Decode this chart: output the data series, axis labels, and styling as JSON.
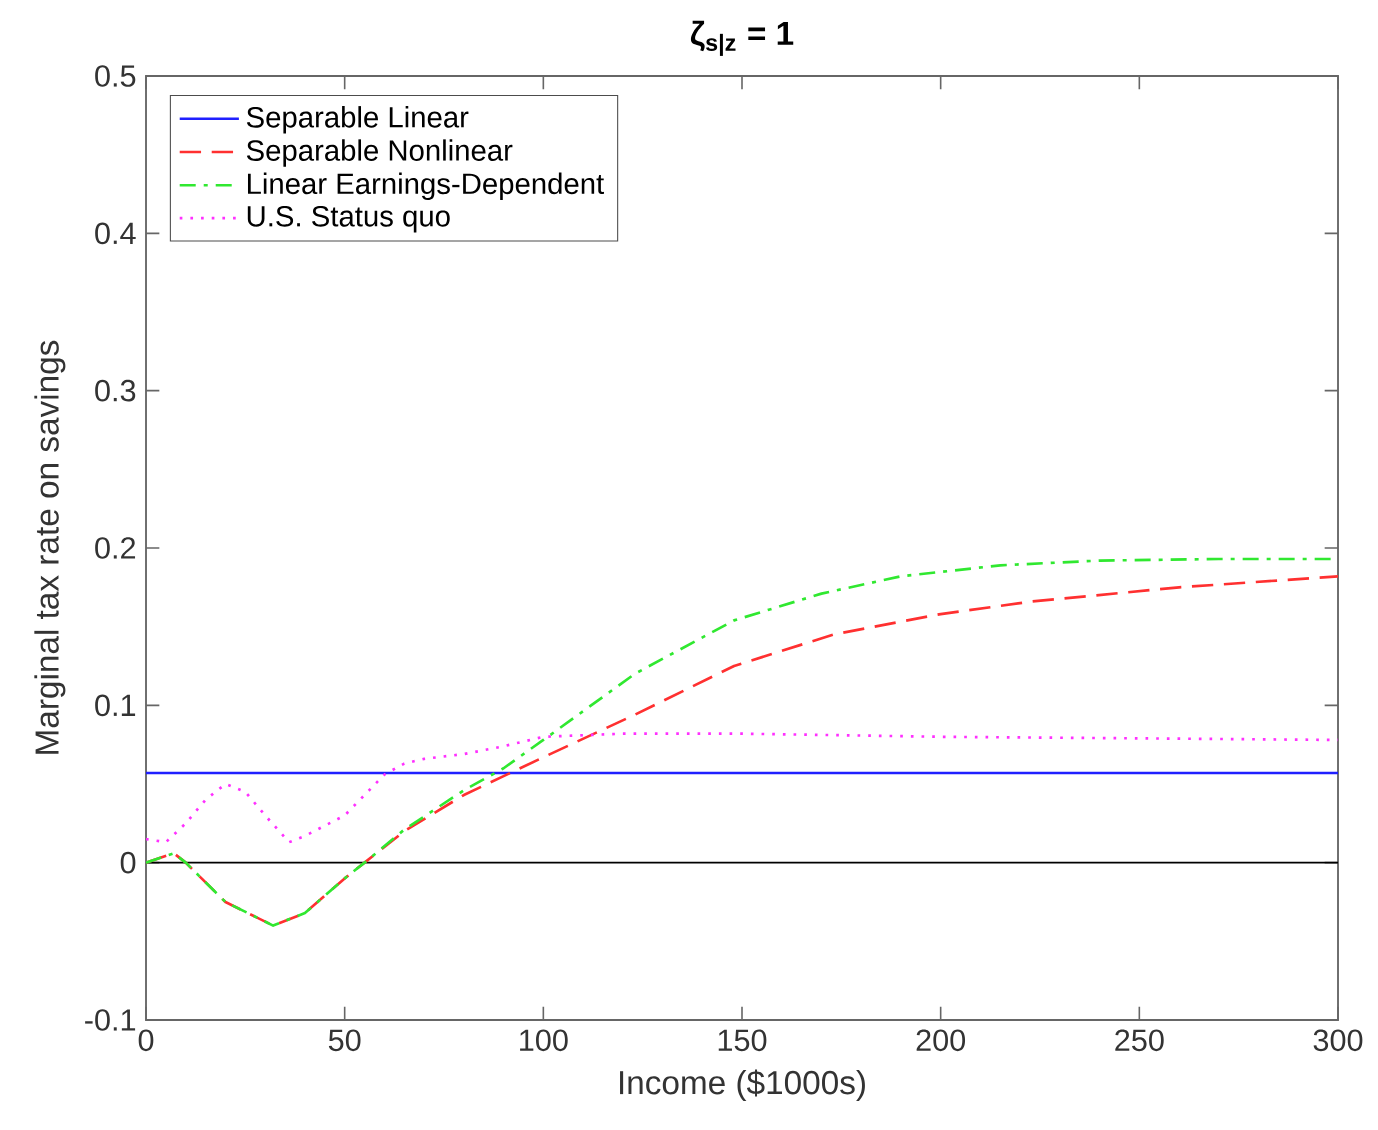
{
  "chart_data": {
    "type": "line",
    "title": "ζ$_{s|z}$ = 1",
    "xlabel": "Income ($1000s)",
    "ylabel": "Marginal tax rate on savings",
    "xlim": [
      0,
      300
    ],
    "ylim": [
      -0.1,
      0.5
    ],
    "xticks": [
      0,
      50,
      100,
      150,
      200,
      250,
      300
    ],
    "yticks": [
      -0.1,
      0,
      0.1,
      0.2,
      0.3,
      0.4,
      0.5
    ],
    "grid": false,
    "legend": "top left",
    "marker": "none",
    "ref_lines": [
      {
        "axis": "y",
        "value": 0,
        "color": "#000000",
        "line_style": "solid"
      }
    ],
    "series": [
      {
        "name": "Separable Linear",
        "color": "#2020ff",
        "line_style": "solid",
        "x": [
          0,
          300
        ],
        "values": [
          0.057,
          0.057
        ]
      },
      {
        "name": "Separable Nonlinear",
        "color": "#ff3030",
        "line_style": "dashed",
        "x": [
          0,
          7,
          10,
          20,
          32,
          40,
          50,
          55,
          65,
          80,
          90,
          100,
          123,
          148,
          173,
          200,
          223,
          260,
          300
        ],
        "values": [
          0,
          0.006,
          0,
          -0.025,
          -0.04,
          -0.032,
          -0.01,
          0,
          0.02,
          0.043,
          0.055,
          0.067,
          0.094,
          0.125,
          0.145,
          0.158,
          0.166,
          0.175,
          0.182
        ]
      },
      {
        "name": "Linear Earnings-Dependent",
        "color": "#30e830",
        "line_style": "dashdot",
        "x": [
          0,
          7,
          10,
          20,
          32,
          40,
          50,
          55,
          65,
          80,
          90,
          100,
          123,
          148,
          170,
          190,
          215,
          240,
          270,
          300
        ],
        "values": [
          0,
          0.006,
          0,
          -0.025,
          -0.04,
          -0.032,
          -0.01,
          0,
          0.021,
          0.046,
          0.06,
          0.078,
          0.12,
          0.154,
          0.171,
          0.182,
          0.189,
          0.192,
          0.193,
          0.193
        ]
      },
      {
        "name": "U.S. Status quo",
        "color": "#ff30ff",
        "line_style": "dotted",
        "x": [
          0,
          5,
          10,
          15,
          20,
          25,
          30,
          36,
          40,
          50,
          60,
          65,
          70,
          80,
          90,
          100,
          120,
          150,
          200,
          250,
          300
        ],
        "values": [
          0.015,
          0.013,
          0.025,
          0.04,
          0.05,
          0.045,
          0.03,
          0.013,
          0.017,
          0.03,
          0.056,
          0.063,
          0.066,
          0.069,
          0.074,
          0.08,
          0.082,
          0.082,
          0.08,
          0.079,
          0.078
        ]
      }
    ]
  }
}
